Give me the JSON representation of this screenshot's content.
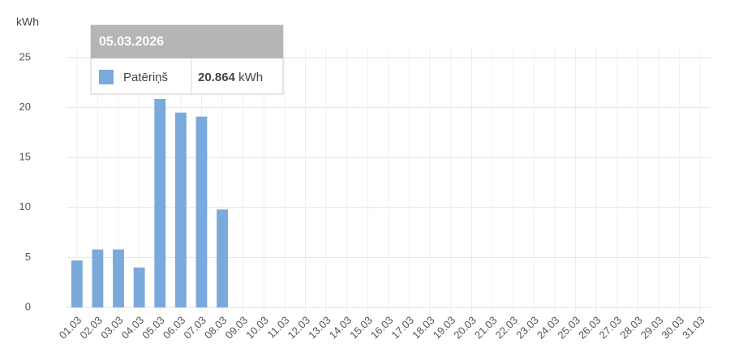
{
  "chart_data": {
    "type": "bar",
    "ylabel": "kWh",
    "categories": [
      "01.03",
      "02.03",
      "03.03",
      "04.03",
      "05.03",
      "06.03",
      "07.03",
      "08.03",
      "09.03",
      "10.03",
      "11.03",
      "12.03",
      "13.03",
      "14.03",
      "15.03",
      "16.03",
      "17.03",
      "18.03",
      "19.03",
      "20.03",
      "21.03",
      "22.03",
      "23.03",
      "24.03",
      "25.03",
      "26.03",
      "27.03",
      "28.03",
      "29.03",
      "30.03",
      "31.03"
    ],
    "series": [
      {
        "name": "Patēriņš",
        "color": "#7aa9dc",
        "values": [
          4.7,
          5.8,
          5.8,
          4.0,
          20.864,
          19.5,
          19.1,
          9.8,
          null,
          null,
          null,
          null,
          null,
          null,
          null,
          null,
          null,
          null,
          null,
          null,
          null,
          null,
          null,
          null,
          null,
          null,
          null,
          null,
          null,
          null,
          null
        ]
      }
    ],
    "ylim": [
      0,
      25
    ],
    "yticks": [
      0,
      5,
      10,
      15,
      20,
      25
    ],
    "grid": true,
    "tooltip": {
      "title": "05.03.2026",
      "unit": "kWh"
    }
  }
}
